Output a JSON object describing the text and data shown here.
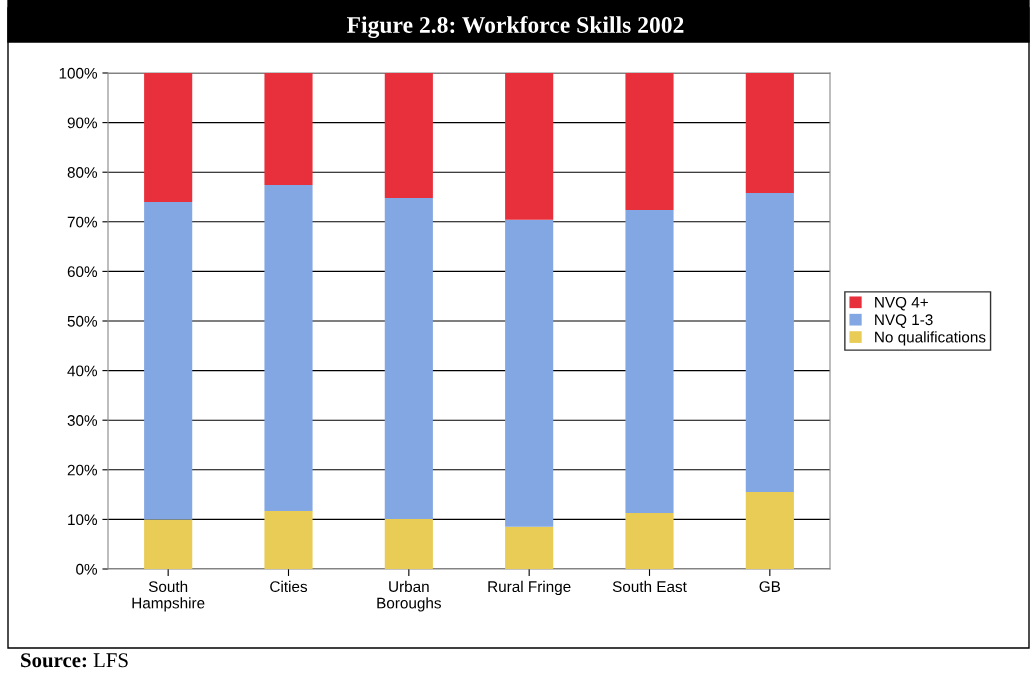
{
  "chart_data": {
    "type": "bar",
    "stacked": true,
    "title": "Figure 2.8: Workforce Skills 2002",
    "categories": [
      "South\nHampshire",
      "Cities",
      "Urban\nBoroughs",
      "Rural Fringe",
      "South East",
      "GB"
    ],
    "series": [
      {
        "name": "No qualifications",
        "color": "#e8cc55",
        "values": [
          10,
          11.7,
          10.1,
          8.5,
          11.3,
          15.5
        ]
      },
      {
        "name": "NVQ 1-3",
        "color": "#83a7e3",
        "values": [
          64,
          65.7,
          64.7,
          61.9,
          61.1,
          60.3
        ]
      },
      {
        "name": "NVQ 4+",
        "color": "#e8303c",
        "values": [
          26,
          22.6,
          25.2,
          29.6,
          27.6,
          24.2
        ]
      }
    ],
    "ylim": [
      0,
      100
    ],
    "yticks": [
      {
        "value": 0,
        "label": "0%"
      },
      {
        "value": 10,
        "label": "10%"
      },
      {
        "value": 20,
        "label": "20%"
      },
      {
        "value": 30,
        "label": "30%"
      },
      {
        "value": 40,
        "label": "40%"
      },
      {
        "value": 50,
        "label": "50%"
      },
      {
        "value": 60,
        "label": "60%"
      },
      {
        "value": 70,
        "label": "70%"
      },
      {
        "value": 80,
        "label": "80%"
      },
      {
        "value": 90,
        "label": "90%"
      },
      {
        "value": 100,
        "label": "100%"
      }
    ],
    "grid": "y",
    "legend": "right",
    "annotations": [
      "Source: LFS"
    ]
  }
}
